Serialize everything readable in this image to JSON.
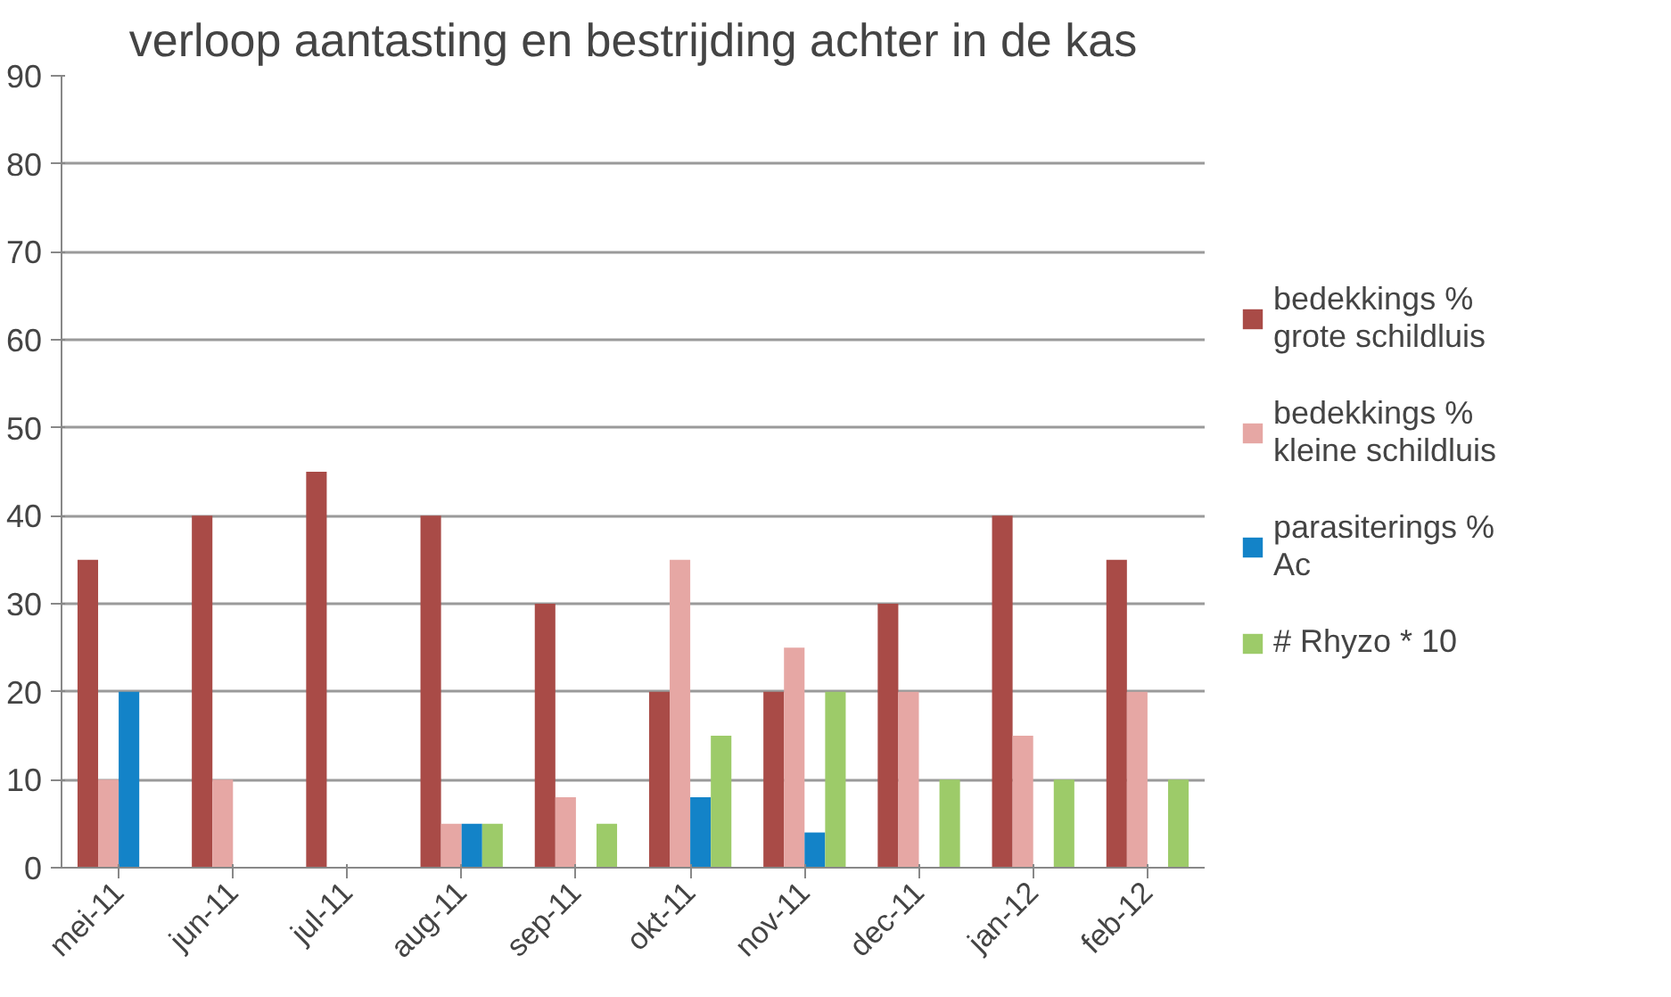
{
  "chart_data": {
    "type": "bar",
    "title": "verloop aantasting en bestrijding achter in de kas",
    "categories": [
      "mei-11",
      "jun-11",
      "jul-11",
      "aug-11",
      "sep-11",
      "okt-11",
      "nov-11",
      "dec-11",
      "jan-12",
      "feb-12"
    ],
    "series": [
      {
        "name": "bedekkings %\ngrote schildluis",
        "color": "#a94b47",
        "values": [
          35,
          40,
          45,
          40,
          30,
          20,
          20,
          30,
          40,
          35
        ]
      },
      {
        "name": "bedekkings %\nkleine schildluis",
        "color": "#e6a7a4",
        "values": [
          10,
          10,
          null,
          5,
          8,
          35,
          25,
          20,
          15,
          20
        ]
      },
      {
        "name": "parasiterings %\nAc",
        "color": "#1383c8",
        "values": [
          20,
          null,
          null,
          5,
          null,
          8,
          4,
          null,
          null,
          null
        ]
      },
      {
        "name": "# Rhyzo * 10",
        "color": "#9dcb69",
        "values": [
          null,
          null,
          null,
          5,
          5,
          15,
          20,
          10,
          10,
          10
        ]
      }
    ],
    "ylim": [
      0,
      90
    ],
    "yticks": [
      0,
      10,
      20,
      30,
      40,
      50,
      60,
      70,
      80,
      90
    ],
    "grid": "y",
    "legend": "right"
  }
}
